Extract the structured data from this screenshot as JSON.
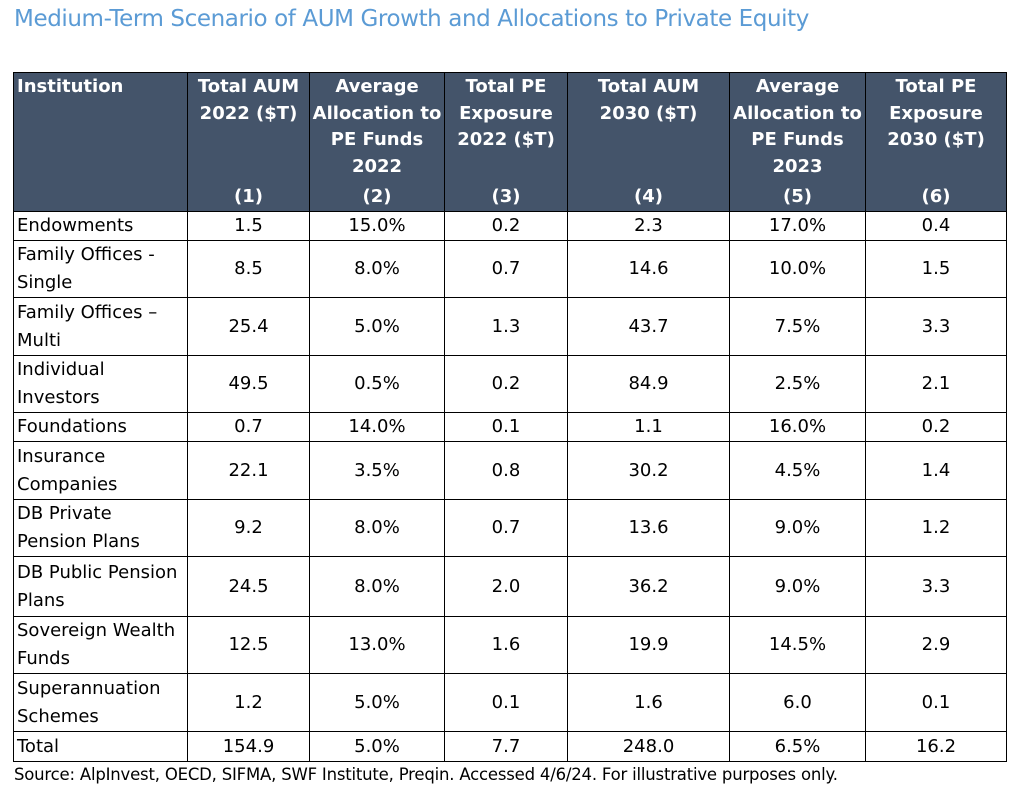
{
  "title": "Medium-Term Scenario of AUM Growth and Allocations to Private Equity",
  "colors": {
    "title": "#5b9bd5",
    "header_bg": "#44546a",
    "header_text": "#ffffff",
    "border": "#000000"
  },
  "table": {
    "headers": [
      {
        "label": "Institution",
        "num": ""
      },
      {
        "label": "Total AUM\n2022 ($T)",
        "num": "(1)"
      },
      {
        "label": "Average\nAllocation to\nPE Funds\n2022",
        "num": "(2)"
      },
      {
        "label": "Total PE\nExposure\n2022 ($T)",
        "num": "(3)"
      },
      {
        "label": "Total AUM\n2030 ($T)",
        "num": "(4)"
      },
      {
        "label": "Average\nAllocation to\nPE Funds\n2023",
        "num": "(5)"
      },
      {
        "label": "Total PE\nExposure\n2030 ($T)",
        "num": "(6)"
      }
    ],
    "rows": [
      {
        "institution": "Endowments",
        "values": [
          "1.5",
          "15.0%",
          "0.2",
          "2.3",
          "17.0%",
          "0.4"
        ]
      },
      {
        "institution": "Family Offices -\nSingle",
        "values": [
          "8.5",
          "8.0%",
          "0.7",
          "14.6",
          "10.0%",
          "1.5"
        ]
      },
      {
        "institution": "Family Offices –\nMulti",
        "values": [
          "25.4",
          "5.0%",
          "1.3",
          "43.7",
          "7.5%",
          "3.3"
        ]
      },
      {
        "institution": "Individual\nInvestors",
        "values": [
          "49.5",
          "0.5%",
          "0.2",
          "84.9",
          "2.5%",
          "2.1"
        ]
      },
      {
        "institution": "Foundations",
        "values": [
          "0.7",
          "14.0%",
          "0.1",
          "1.1",
          "16.0%",
          "0.2"
        ]
      },
      {
        "institution": "Insurance\nCompanies",
        "values": [
          "22.1",
          "3.5%",
          "0.8",
          "30.2",
          "4.5%",
          "1.4"
        ]
      },
      {
        "institution": "DB Private\nPension Plans",
        "values": [
          "9.2",
          "8.0%",
          "0.7",
          "13.6",
          "9.0%",
          "1.2"
        ]
      },
      {
        "institution": "DB Public Pension\nPlans",
        "values": [
          "24.5",
          "8.0%",
          "2.0",
          "36.2",
          "9.0%",
          "3.3"
        ]
      },
      {
        "institution": "Sovereign Wealth\nFunds",
        "values": [
          "12.5",
          "13.0%",
          "1.6",
          "19.9",
          "14.5%",
          "2.9"
        ]
      },
      {
        "institution": "Superannuation\nSchemes",
        "values": [
          "1.2",
          "5.0%",
          "0.1",
          "1.6",
          "6.0",
          "0.1"
        ]
      },
      {
        "institution": "Total",
        "values": [
          "154.9",
          "5.0%",
          "7.7",
          "248.0",
          "6.5%",
          "16.2"
        ]
      }
    ]
  },
  "source": "Source: AlpInvest, OECD, SIFMA, SWF Institute, Preqin. Accessed 4/6/24. For illustrative purposes only."
}
